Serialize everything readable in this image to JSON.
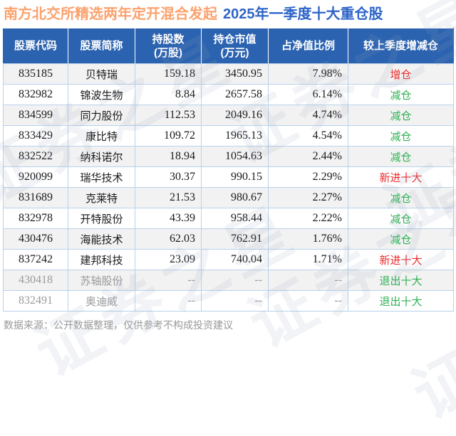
{
  "title": {
    "fund_name": "南方北交所精选两年定开混合发起",
    "report_label": "2025年一季度十大重仓股"
  },
  "colors": {
    "header_bg": "#2c63b0",
    "orange": "#fba26e",
    "blue": "#2d64c8",
    "red": "#ee2c2c",
    "green": "#2fb154",
    "muted": "#9a9a9a",
    "border": "#b9d2ec",
    "altrow": "#f2f2f2"
  },
  "chart_data": {
    "type": "table",
    "title": "南方北交所精选两年定开混合发起 2025年一季度十大重仓股",
    "columns": [
      {
        "line1": "股票代码",
        "line2": ""
      },
      {
        "line1": "股票简称",
        "line2": ""
      },
      {
        "line1": "持股数",
        "line2": "(万股)"
      },
      {
        "line1": "持仓市值",
        "line2": "(万元)"
      },
      {
        "line1": "占净值比例",
        "line2": ""
      },
      {
        "line1": "较上季度增减仓",
        "line2": ""
      }
    ],
    "rows": [
      {
        "code": "835185",
        "name": "贝特瑞",
        "shares": "159.18",
        "value": "3450.95",
        "pct": "7.98%",
        "change": "增仓",
        "change_color": "red",
        "muted": false
      },
      {
        "code": "832982",
        "name": "锦波生物",
        "shares": "8.84",
        "value": "2657.58",
        "pct": "6.14%",
        "change": "减仓",
        "change_color": "green",
        "muted": false
      },
      {
        "code": "834599",
        "name": "同力股份",
        "shares": "112.53",
        "value": "2049.16",
        "pct": "4.74%",
        "change": "减仓",
        "change_color": "green",
        "muted": false
      },
      {
        "code": "833429",
        "name": "康比特",
        "shares": "109.72",
        "value": "1965.13",
        "pct": "4.54%",
        "change": "减仓",
        "change_color": "green",
        "muted": false
      },
      {
        "code": "832522",
        "name": "纳科诺尔",
        "shares": "18.94",
        "value": "1054.63",
        "pct": "2.44%",
        "change": "减仓",
        "change_color": "green",
        "muted": false
      },
      {
        "code": "920099",
        "name": "瑞华技术",
        "shares": "30.37",
        "value": "990.15",
        "pct": "2.29%",
        "change": "新进十大",
        "change_color": "red",
        "muted": false
      },
      {
        "code": "831689",
        "name": "克莱特",
        "shares": "21.53",
        "value": "980.67",
        "pct": "2.27%",
        "change": "减仓",
        "change_color": "green",
        "muted": false
      },
      {
        "code": "832978",
        "name": "开特股份",
        "shares": "43.39",
        "value": "958.44",
        "pct": "2.22%",
        "change": "减仓",
        "change_color": "green",
        "muted": false
      },
      {
        "code": "430476",
        "name": "海能技术",
        "shares": "62.03",
        "value": "762.91",
        "pct": "1.76%",
        "change": "减仓",
        "change_color": "green",
        "muted": false
      },
      {
        "code": "837242",
        "name": "建邦科技",
        "shares": "23.09",
        "value": "740.04",
        "pct": "1.71%",
        "change": "新进十大",
        "change_color": "red",
        "muted": false
      },
      {
        "code": "430418",
        "name": "苏轴股份",
        "shares": "--",
        "value": "--",
        "pct": "--",
        "change": "退出十大",
        "change_color": "green",
        "muted": true
      },
      {
        "code": "832491",
        "name": "奥迪威",
        "shares": "--",
        "value": "--",
        "pct": "--",
        "change": "退出十大",
        "change_color": "green",
        "muted": true
      }
    ]
  },
  "footer": {
    "source_note": "数据来源：公开数据整理，仅供参考不构成投资建议"
  },
  "watermark": {
    "text": "证券之星"
  }
}
